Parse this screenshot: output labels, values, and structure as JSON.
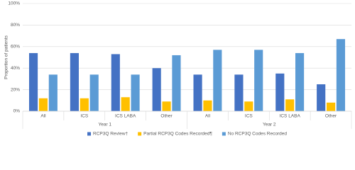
{
  "chart_data": {
    "type": "bar",
    "y_label": "Proportion of patients",
    "groups": [
      {
        "name": "Year 1",
        "categories": [
          "All",
          "ICS",
          "ICS LABA",
          "Other"
        ]
      },
      {
        "name": "Year 2",
        "categories": [
          "All",
          "ICS",
          "ICS LABA",
          "Other"
        ]
      }
    ],
    "series": [
      {
        "name": "RCP3Q Review†",
        "color": "#4472c4",
        "values": [
          54,
          54,
          53,
          40,
          34,
          34,
          35,
          25
        ]
      },
      {
        "name": "Partial RCP3Q Codes Recorded¶",
        "color": "#ffc000",
        "values": [
          12,
          12,
          13,
          9,
          10,
          9,
          11,
          8
        ]
      },
      {
        "name": "No RCP3Q Codes Recorded",
        "color": "#5b9bd5",
        "values": [
          34,
          34,
          34,
          52,
          57,
          57,
          54,
          67
        ]
      }
    ],
    "ylim": [
      0,
      100
    ],
    "yticks": [
      {
        "value": 0,
        "label": "0%"
      },
      {
        "value": 20,
        "label": "20%"
      },
      {
        "value": 40,
        "label": "40%"
      },
      {
        "value": 60,
        "label": "60%"
      },
      {
        "value": 80,
        "label": "80%"
      },
      {
        "value": 100,
        "label": "100%"
      }
    ],
    "grid": true,
    "legend": "bottom"
  }
}
